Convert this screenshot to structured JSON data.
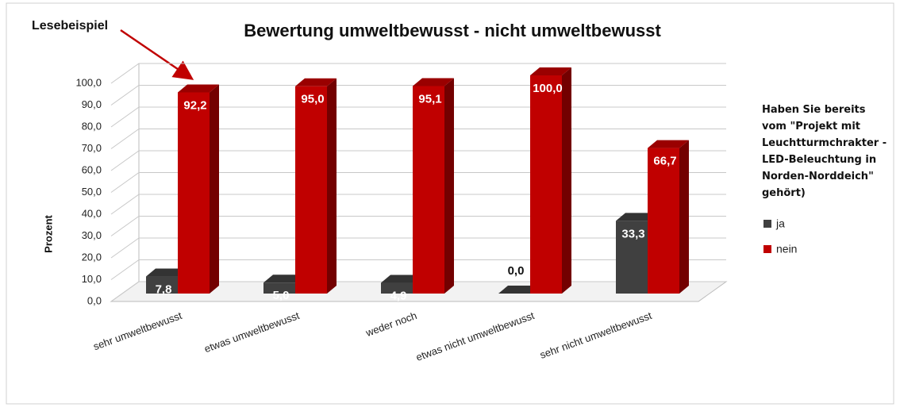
{
  "chart_data": {
    "type": "bar3d",
    "title": "Bewertung umweltbewusst - nicht umweltbewusst",
    "y_label": "Prozent",
    "annotation": "Lesebeispiel",
    "legend_title": "Haben Sie bereits vom \"Projekt mit Leuchtturmchrakter - LED-Beleuchtung in Norden-Norddeich\" gehört)",
    "categories": [
      "sehr umweltbewusst",
      "etwas umweltbewusst",
      "weder noch",
      "etwas nicht umweltbewusst",
      "sehr nicht umweltbewusst"
    ],
    "series": [
      {
        "name": "ja",
        "color": "#404040",
        "values": [
          7.8,
          5.0,
          4.9,
          0.0,
          33.3
        ],
        "value_labels": [
          "7,8",
          "5,0",
          "4,9",
          "0,0",
          "33,3"
        ]
      },
      {
        "name": "nein",
        "color": "#c00000",
        "values": [
          92.2,
          95.0,
          95.1,
          100.0,
          66.7
        ],
        "value_labels": [
          "92,2",
          "95,0",
          "95,1",
          "100,0",
          "66,7"
        ]
      }
    ],
    "ylim": [
      0,
      100
    ],
    "yticks": [
      {
        "value": 0,
        "label": "0,0"
      },
      {
        "value": 10,
        "label": "10,0"
      },
      {
        "value": 20,
        "label": "20,0"
      },
      {
        "value": 30,
        "label": "30,0"
      },
      {
        "value": 40,
        "label": "40,0"
      },
      {
        "value": 50,
        "label": "50,0"
      },
      {
        "value": 60,
        "label": "60,0"
      },
      {
        "value": 70,
        "label": "70,0"
      },
      {
        "value": 80,
        "label": "80,0"
      },
      {
        "value": 90,
        "label": "90,0"
      },
      {
        "value": 100,
        "label": "100,0"
      }
    ],
    "grid": true
  }
}
